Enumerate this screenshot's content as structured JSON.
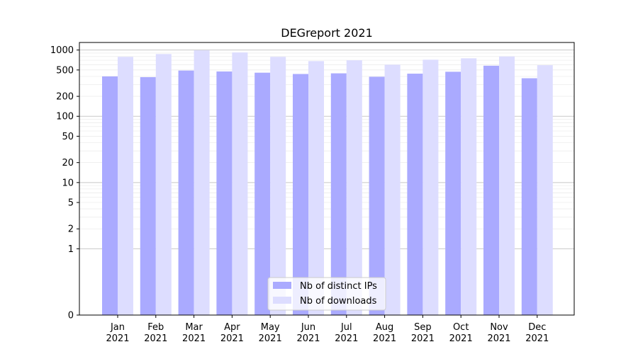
{
  "chart_data": {
    "type": "bar",
    "title": "DEGreport 2021",
    "xlabel": "",
    "ylabel": "",
    "yscale": "symlog",
    "ylim": [
      0,
      1300
    ],
    "grid": true,
    "legend_position": "bottom-center",
    "categories": [
      {
        "month": "Jan",
        "year": "2021"
      },
      {
        "month": "Feb",
        "year": "2021"
      },
      {
        "month": "Mar",
        "year": "2021"
      },
      {
        "month": "Apr",
        "year": "2021"
      },
      {
        "month": "May",
        "year": "2021"
      },
      {
        "month": "Jun",
        "year": "2021"
      },
      {
        "month": "Jul",
        "year": "2021"
      },
      {
        "month": "Aug",
        "year": "2021"
      },
      {
        "month": "Sep",
        "year": "2021"
      },
      {
        "month": "Oct",
        "year": "2021"
      },
      {
        "month": "Nov",
        "year": "2021"
      },
      {
        "month": "Dec",
        "year": "2021"
      }
    ],
    "yticks": [
      {
        "value": 0,
        "label": "0"
      },
      {
        "value": 1,
        "label": "1"
      },
      {
        "value": 2,
        "label": "2"
      },
      {
        "value": 5,
        "label": "5"
      },
      {
        "value": 10,
        "label": "10"
      },
      {
        "value": 20,
        "label": "20"
      },
      {
        "value": 50,
        "label": "50"
      },
      {
        "value": 100,
        "label": "100"
      },
      {
        "value": 200,
        "label": "200"
      },
      {
        "value": 500,
        "label": "500"
      },
      {
        "value": 1000,
        "label": "1000"
      }
    ],
    "series": [
      {
        "name": "Nb of distinct IPs",
        "color": "#aaaaff",
        "values": [
          400,
          390,
          490,
          475,
          455,
          435,
          445,
          395,
          440,
          470,
          580,
          375
        ]
      },
      {
        "name": "Nb of downloads",
        "color": "#ddddff",
        "values": [
          790,
          870,
          990,
          920,
          790,
          680,
          700,
          600,
          715,
          750,
          800,
          590
        ]
      }
    ]
  }
}
